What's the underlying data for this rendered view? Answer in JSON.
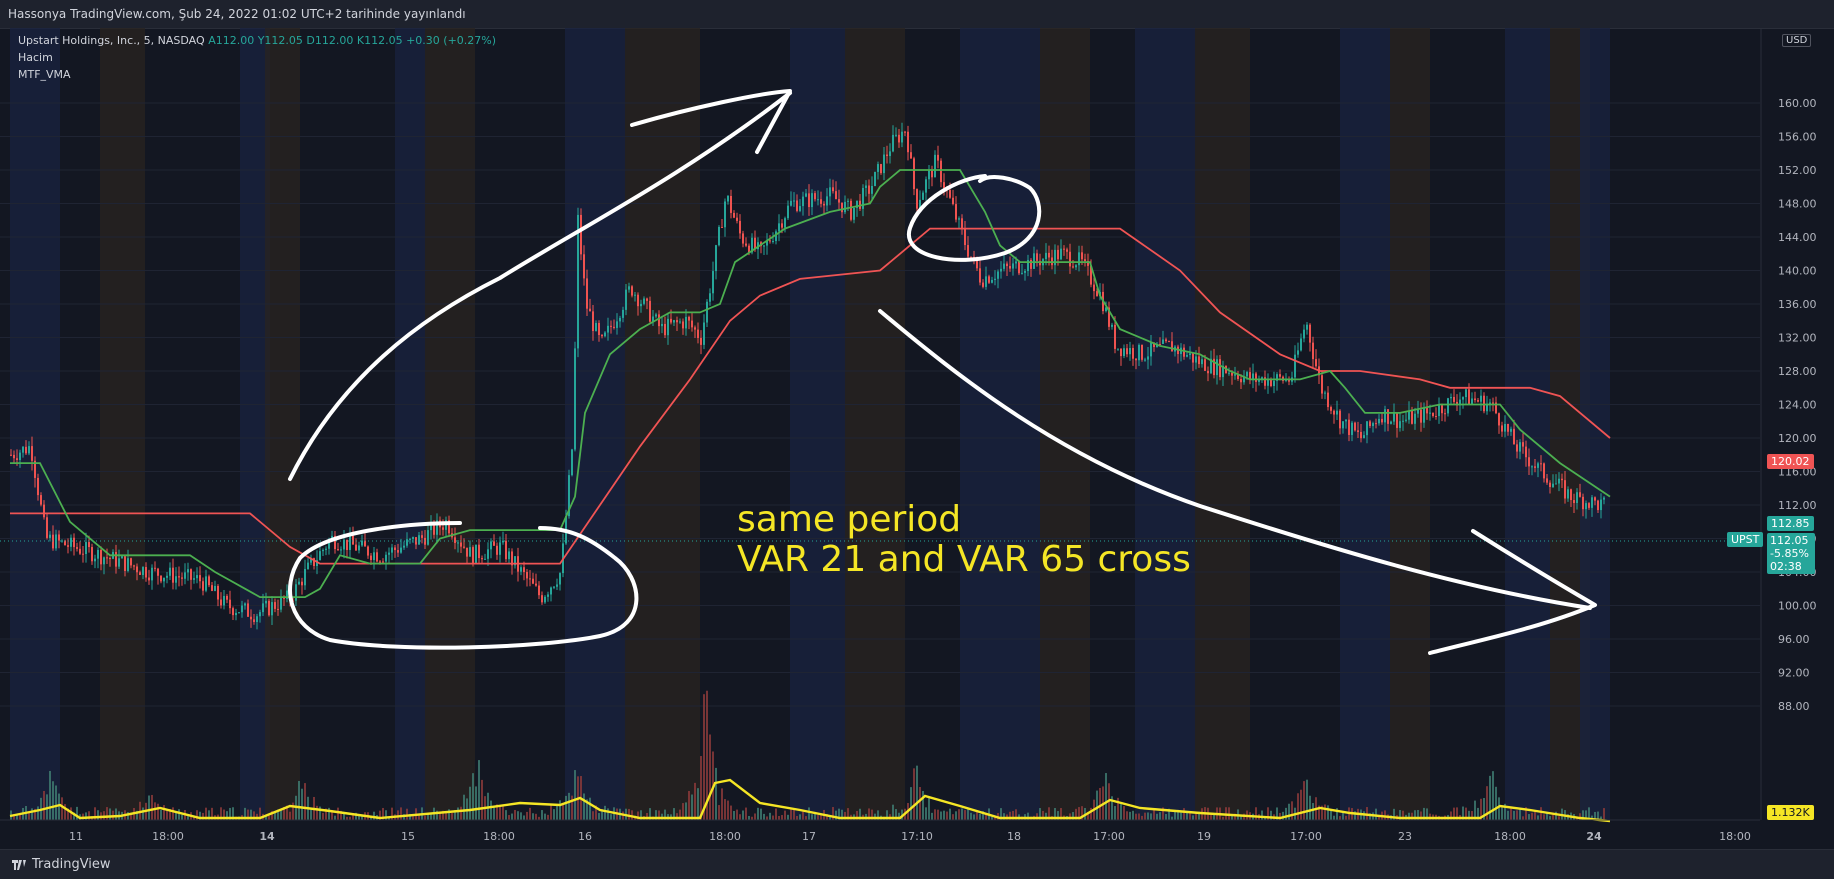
{
  "header": {
    "text": "Hassonya TradingView.com, Şub 24, 2022 01:02 UTC+2 tarihinde yayınlandı"
  },
  "legend": {
    "symbol": "Upstart Holdings, Inc., 5, NASDAQ",
    "A": "A112.00",
    "Y": "Y112.05",
    "D": "D112.00",
    "K": "K112.05",
    "change": "+0.30 (+0.27%)",
    "indicator1": "Hacim",
    "indicator2": "MTF_VMA"
  },
  "annotation": {
    "line1": "same period",
    "line2": "VAR 21 and VAR 65 cross"
  },
  "price_axis": {
    "currency": "USD",
    "top_cut": "164.00",
    "ticks": [
      "160.00",
      "156.00",
      "152.00",
      "148.00",
      "144.00",
      "140.00",
      "136.00",
      "132.00",
      "128.00",
      "124.00",
      "120.00",
      "116.00",
      "112.00",
      "108.00",
      "104.00",
      "100.00",
      "96.00",
      "92.00",
      "88.00"
    ]
  },
  "badges": {
    "red_line": "120.02",
    "green_line": "112.85",
    "symbol_tag": "UPST",
    "price": "112.05",
    "pct": "-5.85%",
    "countdown": "02:38",
    "volume": "1.132K"
  },
  "time_axis": [
    "11",
    "18:00",
    "14",
    "15",
    "18:00",
    "16",
    "18:00",
    "17",
    "17:10",
    "18",
    "17:00",
    "19",
    "17:00",
    "23",
    "18:00",
    "24",
    "18:00"
  ],
  "footer": {
    "brand": "TradingView"
  },
  "colors": {
    "background": "#131722",
    "candle_up": "#26a69a",
    "candle_down": "#ef5350",
    "var21": "#4caf50",
    "var65": "#f05454",
    "volume_ma": "#f5e625",
    "annotation": "#f5e625",
    "session_blue": "#1a2340",
    "session_brown": "#2a2420"
  },
  "chart_data": {
    "type": "line",
    "y_axis": {
      "min": 86,
      "max": 164,
      "scale": "linear"
    },
    "series": [
      {
        "kind": "price_close",
        "x": [
          "11",
          "18:00",
          "14",
          "15",
          "18:00",
          "16",
          "18:00",
          "17",
          "17:10",
          "18",
          "17:00",
          "19",
          "17:00",
          "23",
          "18:00",
          "24"
        ],
        "values": [
          118,
          105,
          100,
          106,
          108,
          135,
          147,
          148,
          156,
          140,
          141,
          129,
          127,
          121,
          123,
          112
        ]
      },
      {
        "kind": "var21",
        "x": [
          "11",
          "18:00",
          "14",
          "15",
          "18:00",
          "16",
          "18:00",
          "17",
          "17:10",
          "18",
          "17:00",
          "19",
          "17:00",
          "23",
          "18:00",
          "24"
        ],
        "values": [
          114,
          105,
          101,
          104,
          109,
          130,
          136,
          145,
          152,
          142,
          141,
          130,
          128,
          123,
          123,
          113
        ]
      },
      {
        "kind": "var65",
        "x": [
          "11",
          "18:00",
          "14",
          "15",
          "18:00",
          "16",
          "18:00",
          "17",
          "17:10",
          "18",
          "17:00",
          "19",
          "17:00",
          "23",
          "18:00",
          "24"
        ],
        "values": [
          111,
          111,
          105,
          104,
          105,
          120,
          137,
          140,
          142,
          145,
          145,
          132,
          128,
          127,
          127,
          120
        ]
      }
    ]
  }
}
